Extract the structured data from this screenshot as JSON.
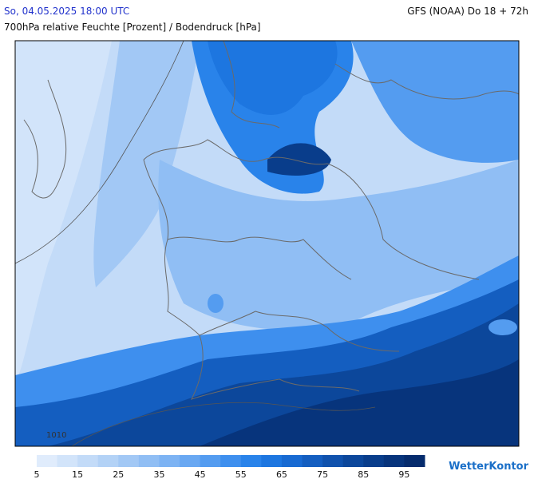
{
  "header": {
    "timestamp": "So, 04.05.2025 18:00 UTC",
    "model": "GFS (NOAA) Do 18 + 72h",
    "subtitle": "700hPa relative Feuchte [Prozent] / Bodendruck [hPa]"
  },
  "map": {
    "isobar_label": "1010"
  },
  "legend": {
    "lim": [
      5,
      100
    ],
    "ticks": [
      5,
      15,
      25,
      35,
      45,
      55,
      65,
      75,
      85,
      95
    ],
    "colors": [
      "#e0ecfc",
      "#d2e4fa",
      "#c3dbf8",
      "#b3d2f6",
      "#a2c8f5",
      "#90bef4",
      "#7db3f3",
      "#69a8f2",
      "#549cf0",
      "#3e8fee",
      "#2983ea",
      "#1d76e0",
      "#186ad2",
      "#145ec0",
      "#1052ad",
      "#0c479b",
      "#093d8b",
      "#07347c",
      "#052b6d"
    ]
  },
  "brand": "WetterKontor"
}
